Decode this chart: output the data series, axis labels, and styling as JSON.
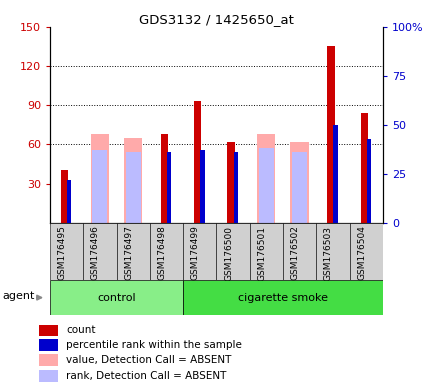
{
  "title": "GDS3132 / 1425650_at",
  "samples": [
    "GSM176495",
    "GSM176496",
    "GSM176497",
    "GSM176498",
    "GSM176499",
    "GSM176500",
    "GSM176501",
    "GSM176502",
    "GSM176503",
    "GSM176504"
  ],
  "count_values": [
    40,
    0,
    0,
    68,
    93,
    62,
    0,
    0,
    135,
    84
  ],
  "percentile_rank_values": [
    22,
    0,
    0,
    36,
    37,
    36,
    0,
    0,
    50,
    43
  ],
  "absent_value_bars": [
    0,
    68,
    65,
    0,
    0,
    0,
    68,
    62,
    0,
    0
  ],
  "absent_rank_bars": [
    0,
    37,
    36,
    0,
    0,
    0,
    38,
    36,
    0,
    0
  ],
  "count_present": [
    true,
    false,
    false,
    true,
    true,
    true,
    false,
    false,
    true,
    true
  ],
  "rank_present": [
    true,
    false,
    false,
    true,
    true,
    true,
    false,
    false,
    true,
    true
  ],
  "ylim_left": [
    0,
    150
  ],
  "ylim_right": [
    0,
    100
  ],
  "yticks_left": [
    30,
    60,
    90,
    120,
    150
  ],
  "yticks_right": [
    0,
    25,
    50,
    75,
    100
  ],
  "color_count": "#cc0000",
  "color_rank": "#0000cc",
  "color_absent_value": "#ffaaaa",
  "color_absent_rank": "#bbbbff",
  "color_control_bg": "#88ee88",
  "color_smoke_bg": "#44dd44",
  "n_control": 4,
  "n_smoke": 6,
  "legend_items": [
    "count",
    "percentile rank within the sample",
    "value, Detection Call = ABSENT",
    "rank, Detection Call = ABSENT"
  ]
}
